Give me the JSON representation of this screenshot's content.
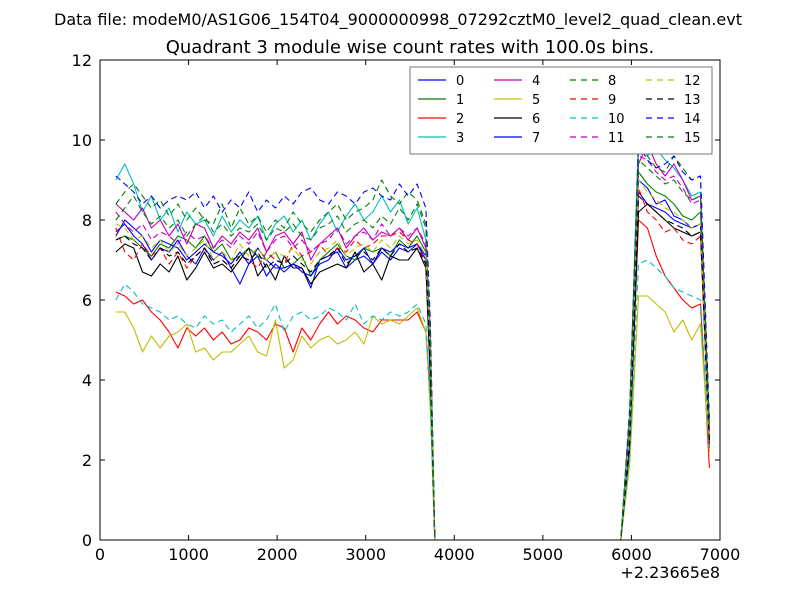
{
  "figure": {
    "suptitle": "Data file: modeM0/AS1G06_154T04_9000000998_07292cztM0_level2_quad_clean.evt"
  },
  "chart_data": {
    "type": "line",
    "title": "Quadrant 3 module wise count rates with 100.0s bins.",
    "xlabel": "",
    "ylabel": "",
    "xlim": [
      0,
      7000
    ],
    "ylim": [
      0,
      12
    ],
    "x_offset_label": "+2.23665e8",
    "xticks": [
      0,
      1000,
      2000,
      3000,
      4000,
      5000,
      6000,
      7000
    ],
    "xtick_labels": [
      "0",
      "1000",
      "2000",
      "3000",
      "4000",
      "5000",
      "6000",
      "7000"
    ],
    "yticks": [
      0,
      2,
      4,
      6,
      8,
      10,
      12
    ],
    "ytick_labels": [
      "0",
      "2",
      "4",
      "6",
      "8",
      "10",
      "12"
    ],
    "grid": false,
    "legend_position": "top-right",
    "legend_columns": 4,
    "x": [
      180,
      280,
      380,
      480,
      580,
      680,
      780,
      880,
      980,
      1080,
      1180,
      1280,
      1380,
      1480,
      1580,
      1680,
      1780,
      1880,
      1980,
      2080,
      2180,
      2280,
      2380,
      2480,
      2580,
      2680,
      2780,
      2880,
      2980,
      3080,
      3180,
      3280,
      3380,
      3480,
      3580,
      3680,
      3730,
      3780,
      3880,
      5880,
      5980,
      6080,
      6180,
      6280,
      6380,
      6480,
      6580,
      6680,
      6780,
      6880
    ],
    "series": [
      {
        "name": "0",
        "color": "#0000ff",
        "style": "solid",
        "values": [
          7.7,
          7.9,
          7.6,
          7.4,
          7.0,
          7.3,
          7.2,
          7.5,
          7.1,
          6.9,
          7.3,
          7.0,
          7.2,
          6.8,
          6.4,
          6.9,
          7.1,
          6.6,
          6.9,
          6.7,
          6.9,
          6.8,
          6.3,
          7.0,
          7.1,
          7.2,
          6.8,
          7.0,
          7.1,
          6.9,
          7.2,
          7.0,
          7.3,
          7.2,
          7.4,
          7.0,
          4.0,
          0,
          0,
          0,
          2.4,
          9.0,
          8.8,
          8.4,
          8.5,
          8.1,
          8.0,
          7.8,
          7.9,
          2.3
        ]
      },
      {
        "name": "1",
        "color": "#008000",
        "style": "solid",
        "values": [
          7.5,
          7.6,
          7.5,
          7.3,
          7.1,
          7.4,
          7.3,
          7.6,
          7.5,
          7.3,
          7.6,
          7.2,
          7.4,
          7.0,
          7.1,
          7.3,
          7.1,
          7.0,
          7.2,
          6.8,
          6.9,
          7.1,
          6.6,
          7.0,
          7.2,
          7.4,
          7.1,
          7.0,
          7.3,
          7.2,
          7.3,
          7.1,
          7.5,
          7.3,
          7.6,
          7.2,
          4.5,
          0,
          0,
          0,
          2.5,
          9.2,
          8.9,
          8.7,
          8.6,
          8.4,
          8.1,
          8.0,
          8.2,
          2.5
        ]
      },
      {
        "name": "2",
        "color": "#ff0000",
        "style": "solid",
        "values": [
          6.2,
          6.1,
          5.9,
          6.0,
          5.7,
          5.5,
          5.2,
          4.8,
          5.3,
          5.1,
          5.3,
          5.0,
          5.2,
          4.9,
          5.0,
          5.3,
          5.2,
          5.0,
          5.4,
          5.3,
          4.7,
          5.3,
          5.0,
          5.4,
          5.7,
          5.4,
          5.6,
          5.5,
          5.3,
          5.2,
          5.5,
          5.5,
          5.5,
          5.5,
          5.7,
          5.2,
          3.5,
          0,
          0,
          0,
          2.2,
          8.0,
          7.8,
          7.1,
          6.6,
          6.3,
          6.0,
          5.8,
          5.9,
          1.8
        ]
      },
      {
        "name": "3",
        "color": "#00bfbf",
        "style": "solid",
        "values": [
          9.0,
          9.4,
          8.9,
          8.2,
          8.6,
          8.0,
          8.3,
          7.7,
          8.2,
          7.9,
          8.0,
          7.6,
          8.1,
          7.7,
          8.0,
          7.8,
          8.1,
          7.5,
          7.9,
          8.1,
          7.7,
          8.0,
          7.5,
          7.9,
          8.2,
          7.7,
          8.1,
          8.4,
          8.0,
          8.2,
          8.6,
          8.2,
          8.5,
          7.9,
          8.3,
          7.5,
          5.0,
          0,
          0,
          0,
          3.2,
          10.2,
          9.6,
          9.8,
          9.5,
          9.3,
          9.0,
          8.6,
          8.7,
          2.8
        ]
      },
      {
        "name": "4",
        "color": "#bf00bf",
        "style": "solid",
        "values": [
          8.4,
          8.2,
          8.0,
          8.3,
          7.8,
          8.0,
          7.6,
          7.9,
          7.4,
          7.9,
          7.8,
          7.3,
          7.6,
          7.4,
          7.7,
          7.5,
          7.8,
          7.2,
          7.6,
          7.7,
          7.4,
          7.7,
          7.0,
          7.4,
          7.6,
          7.8,
          7.3,
          7.6,
          7.8,
          7.5,
          7.7,
          7.6,
          7.8,
          7.5,
          7.8,
          7.3,
          4.8,
          0,
          0,
          0,
          2.9,
          9.4,
          9.9,
          9.4,
          9.1,
          9.4,
          9.0,
          8.5,
          8.6,
          2.7
        ]
      },
      {
        "name": "5",
        "color": "#bfbf00",
        "style": "solid",
        "values": [
          5.7,
          5.7,
          5.3,
          4.7,
          5.1,
          4.8,
          5.1,
          5.2,
          5.4,
          4.7,
          4.8,
          4.5,
          4.7,
          4.7,
          4.9,
          5.1,
          4.7,
          4.6,
          5.5,
          4.3,
          4.5,
          5.1,
          4.8,
          5.0,
          5.1,
          4.9,
          5.0,
          5.2,
          4.9,
          5.6,
          5.4,
          5.5,
          5.4,
          5.6,
          5.8,
          5.2,
          3.2,
          0,
          0,
          0,
          1.9,
          6.1,
          6.1,
          5.9,
          5.7,
          5.2,
          5.5,
          5.0,
          5.4,
          2.2
        ]
      },
      {
        "name": "6",
        "color": "#000000",
        "style": "solid",
        "values": [
          7.2,
          7.4,
          7.3,
          6.7,
          6.6,
          6.9,
          6.7,
          7.1,
          6.5,
          6.8,
          7.2,
          6.8,
          6.9,
          6.7,
          7.0,
          7.3,
          6.6,
          6.9,
          6.5,
          7.1,
          6.8,
          6.8,
          6.4,
          6.7,
          6.8,
          6.9,
          6.8,
          7.2,
          6.7,
          6.9,
          6.5,
          7.1,
          7.0,
          7.0,
          7.3,
          6.8,
          4.0,
          0,
          0,
          0,
          2.3,
          8.2,
          8.4,
          8.2,
          8.0,
          7.8,
          7.7,
          7.6,
          7.7,
          2.4
        ]
      },
      {
        "name": "7",
        "color": "#0000ff",
        "style": "solid",
        "values": [
          7.6,
          8.0,
          7.8,
          7.6,
          7.2,
          7.5,
          7.4,
          7.3,
          7.0,
          7.2,
          7.4,
          7.2,
          7.1,
          6.9,
          7.2,
          6.9,
          7.3,
          7.0,
          6.8,
          6.8,
          6.9,
          6.7,
          6.6,
          6.9,
          7.0,
          7.3,
          7.0,
          7.1,
          7.3,
          6.9,
          7.3,
          7.2,
          7.4,
          7.3,
          7.4,
          7.1,
          4.2,
          0,
          0,
          0,
          2.4,
          8.7,
          8.4,
          8.3,
          8.2,
          8.0,
          7.9,
          7.8,
          7.9,
          2.4
        ]
      },
      {
        "name": "8",
        "color": "#008000",
        "style": "dashed",
        "values": [
          8.4,
          8.7,
          8.9,
          8.6,
          8.3,
          8.5,
          8.1,
          8.4,
          8.0,
          8.3,
          8.0,
          7.9,
          8.4,
          7.8,
          8.3,
          7.9,
          8.1,
          7.7,
          8.0,
          7.8,
          8.2,
          7.9,
          7.7,
          8.0,
          8.2,
          8.4,
          8.0,
          8.2,
          8.3,
          8.5,
          9.0,
          8.6,
          8.4,
          8.7,
          8.5,
          7.9,
          5.2,
          0,
          0,
          0,
          3.1,
          9.8,
          9.6,
          9.3,
          9.2,
          9.6,
          9.3,
          9.0,
          9.1,
          2.9
        ]
      },
      {
        "name": "9",
        "color": "#ff0000",
        "style": "dashed",
        "values": [
          7.8,
          7.2,
          7.0,
          7.4,
          7.1,
          7.3,
          6.9,
          7.2,
          6.8,
          7.1,
          7.3,
          6.9,
          7.0,
          6.8,
          7.1,
          7.0,
          6.8,
          7.2,
          7.0,
          6.9,
          7.4,
          7.1,
          7.2,
          7.4,
          7.1,
          7.3,
          7.2,
          7.5,
          7.3,
          7.4,
          7.6,
          7.6,
          7.7,
          7.5,
          7.4,
          6.9,
          4.5,
          0,
          0,
          0,
          2.6,
          8.8,
          8.2,
          8.0,
          7.7,
          7.8,
          7.5,
          7.4,
          7.6,
          2.4
        ]
      },
      {
        "name": "10",
        "color": "#00bfbf",
        "style": "dashed",
        "values": [
          6.0,
          6.4,
          6.2,
          5.9,
          5.8,
          5.7,
          5.5,
          5.6,
          5.4,
          5.3,
          5.6,
          5.4,
          5.5,
          5.2,
          5.4,
          5.6,
          5.3,
          5.5,
          5.9,
          5.2,
          5.6,
          5.7,
          5.5,
          5.6,
          5.8,
          5.7,
          5.5,
          5.9,
          5.4,
          5.6,
          5.5,
          5.7,
          5.6,
          5.7,
          5.9,
          5.4,
          3.4,
          0,
          0,
          0,
          2.1,
          6.9,
          7.0,
          6.8,
          6.6,
          6.3,
          6.2,
          6.1,
          6.0,
          2.3
        ]
      },
      {
        "name": "11",
        "color": "#bf00bf",
        "style": "dashed",
        "values": [
          8.2,
          7.9,
          7.7,
          7.9,
          7.5,
          7.7,
          7.6,
          7.4,
          7.7,
          7.5,
          7.6,
          7.3,
          7.5,
          7.3,
          7.6,
          7.4,
          7.7,
          7.2,
          7.5,
          7.6,
          7.3,
          7.5,
          7.2,
          7.4,
          7.5,
          7.8,
          7.4,
          7.6,
          7.7,
          7.5,
          7.9,
          7.6,
          7.8,
          7.6,
          7.8,
          7.4,
          4.9,
          0,
          0,
          0,
          3.0,
          9.6,
          9.5,
          9.2,
          9.0,
          9.1,
          8.8,
          8.4,
          8.5,
          2.6
        ]
      },
      {
        "name": "12",
        "color": "#bfbf00",
        "style": "dashed",
        "values": [
          7.9,
          7.8,
          7.5,
          7.6,
          7.3,
          7.5,
          7.2,
          7.4,
          7.1,
          7.3,
          7.5,
          7.0,
          7.2,
          7.0,
          7.4,
          7.1,
          7.3,
          7.0,
          7.2,
          7.1,
          7.3,
          7.0,
          6.9,
          7.2,
          7.3,
          7.5,
          7.1,
          7.3,
          7.4,
          7.2,
          7.5,
          7.3,
          7.6,
          7.4,
          7.5,
          7.1,
          4.6,
          0,
          0,
          0,
          2.7,
          9.0,
          8.7,
          8.5,
          8.3,
          8.2,
          8.0,
          7.8,
          7.9,
          2.5
        ]
      },
      {
        "name": "13",
        "color": "#000000",
        "style": "dashed",
        "values": [
          7.5,
          7.6,
          7.4,
          7.3,
          7.0,
          7.3,
          7.1,
          7.2,
          6.9,
          7.1,
          7.3,
          6.9,
          7.0,
          6.8,
          7.1,
          7.0,
          7.2,
          6.8,
          7.0,
          6.9,
          7.1,
          6.9,
          6.7,
          7.0,
          7.1,
          7.3,
          6.9,
          7.1,
          7.2,
          7.0,
          7.3,
          7.1,
          7.4,
          7.2,
          7.3,
          6.9,
          4.3,
          0,
          0,
          0,
          2.5,
          8.6,
          8.4,
          8.2,
          8.0,
          7.9,
          7.8,
          7.6,
          7.7,
          2.4
        ]
      },
      {
        "name": "14",
        "color": "#0000ff",
        "style": "dashed",
        "values": [
          9.1,
          8.9,
          8.7,
          8.4,
          8.6,
          8.3,
          8.5,
          8.6,
          8.5,
          8.7,
          8.3,
          8.6,
          8.2,
          8.5,
          8.3,
          8.7,
          8.2,
          8.5,
          8.3,
          8.6,
          8.4,
          8.7,
          8.8,
          8.5,
          8.4,
          8.7,
          8.6,
          8.4,
          8.7,
          8.8,
          8.6,
          8.5,
          8.9,
          8.6,
          8.9,
          8.3,
          5.4,
          0,
          0,
          0,
          3.3,
          9.9,
          9.5,
          9.3,
          9.4,
          9.6,
          9.2,
          9.0,
          9.1,
          3.0
        ]
      },
      {
        "name": "15",
        "color": "#008000",
        "style": "dashed",
        "values": [
          8.0,
          8.3,
          8.6,
          8.2,
          7.9,
          8.1,
          7.8,
          8.0,
          7.6,
          7.9,
          8.1,
          7.7,
          7.9,
          7.6,
          7.8,
          7.7,
          7.9,
          7.5,
          7.8,
          7.7,
          7.9,
          7.6,
          7.5,
          7.8,
          7.9,
          8.1,
          7.7,
          7.9,
          8.0,
          7.8,
          8.1,
          7.9,
          8.3,
          8.0,
          8.4,
          7.8,
          5.0,
          0,
          0,
          0,
          3.0,
          9.5,
          9.3,
          9.1,
          8.9,
          9.0,
          8.7,
          8.5,
          8.6,
          2.8
        ]
      }
    ]
  }
}
